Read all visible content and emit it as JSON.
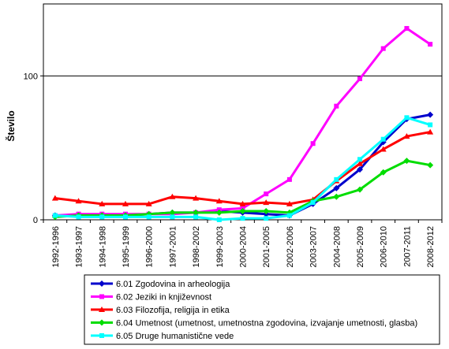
{
  "chart_data": {
    "type": "line",
    "title": "",
    "xlabel": "",
    "ylabel": "Število",
    "ylim": [
      0,
      150
    ],
    "yticks": [
      0,
      100
    ],
    "grid": false,
    "legend_position": "bottom",
    "categories": [
      "1992-1996",
      "1993-1997",
      "1994-1998",
      "1995-1999",
      "1996-2000",
      "1997-2001",
      "1998-2002",
      "1999-2003",
      "2000-2004",
      "2001-2005",
      "2002-2006",
      "2003-2007",
      "2004-2008",
      "2005-2009",
      "2006-2010",
      "2007-2011",
      "2008-2012"
    ],
    "series": [
      {
        "name": "6.01 Zgodovina in arheologija",
        "color": "#0000cc",
        "marker": "diamond",
        "values": [
          3,
          3,
          3,
          3,
          4,
          5,
          5,
          6,
          5,
          4,
          3,
          11,
          22,
          35,
          54,
          70,
          73
        ]
      },
      {
        "name": "6.02 Jeziki in književnost",
        "color": "#ff00ff",
        "marker": "square",
        "values": [
          3,
          4,
          4,
          4,
          4,
          4,
          5,
          7,
          8,
          18,
          28,
          53,
          79,
          98,
          119,
          133,
          122
        ]
      },
      {
        "name": "6.03 Filozofija, religija in etika",
        "color": "#ff0000",
        "marker": "triangle",
        "values": [
          15,
          13,
          11,
          11,
          11,
          16,
          15,
          13,
          11,
          12,
          11,
          14,
          27,
          39,
          49,
          58,
          61
        ]
      },
      {
        "name": "6.04 Umetnost (umetnost, umetnostna zgodovina, izvajanje umetnosti, glasba)",
        "color": "#00dd00",
        "marker": "diamond",
        "values": [
          2,
          3,
          3,
          3,
          4,
          5,
          5,
          5,
          6,
          6,
          5,
          13,
          16,
          21,
          33,
          41,
          38
        ]
      },
      {
        "name": "6.05 Druge humanistične vede",
        "color": "#00ffff",
        "marker": "square",
        "values": [
          3,
          2,
          2,
          2,
          2,
          2,
          2,
          0,
          1,
          1,
          3,
          12,
          28,
          42,
          56,
          71,
          66
        ]
      }
    ]
  }
}
